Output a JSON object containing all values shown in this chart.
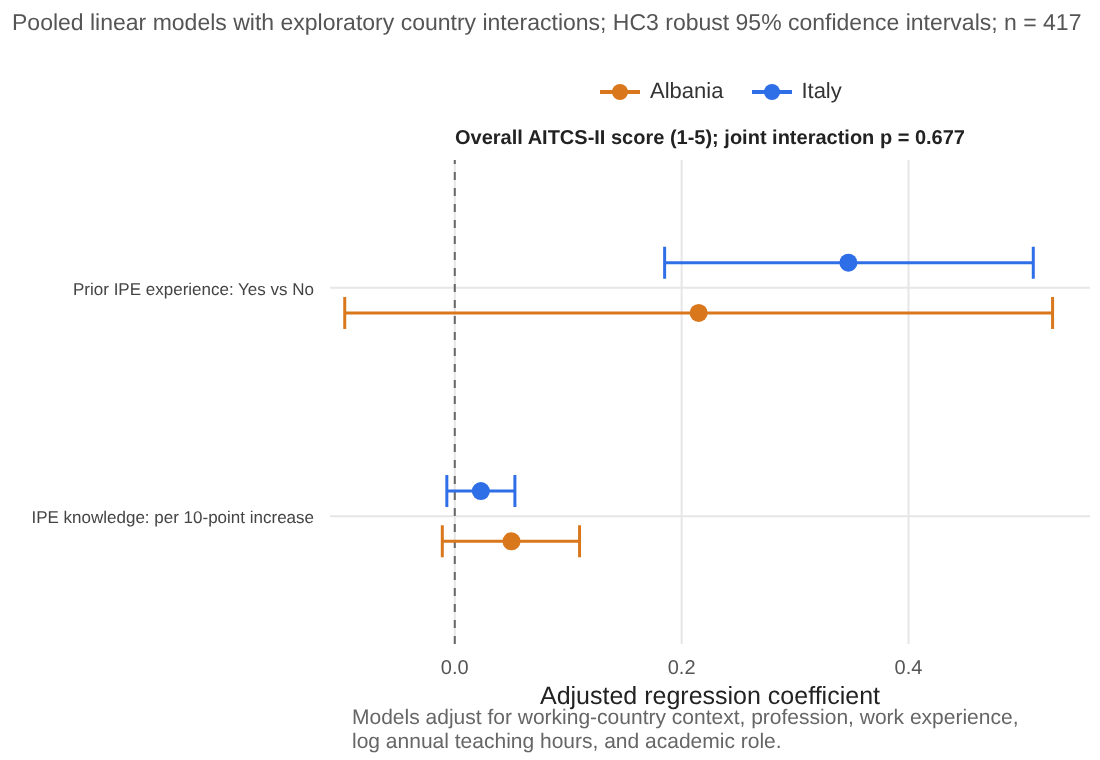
{
  "chart_data": {
    "type": "scatter",
    "orientation": "horizontal",
    "title": "Pooled linear models with exploratory country interactions; HC3 robust 95% confidence intervals; n = 417",
    "subtitle": "Overall AITCS-II score (1-5); joint interaction p = 0.677",
    "xlabel": "Adjusted regression coefficient",
    "annotations": [
      "Models adjust for working-country context, profession, work experience, log annual teaching hours, and academic role."
    ],
    "categories": [
      "Prior IPE experience: Yes vs No",
      "IPE knowledge: per 10-point increase"
    ],
    "series": [
      {
        "name": "Albania",
        "color": "#d9771c",
        "values": [
          0.215,
          0.05
        ],
        "errors": [
          [
            -0.097,
            0.527
          ],
          [
            -0.011,
            0.11
          ]
        ]
      },
      {
        "name": "Italy",
        "color": "#2e6ee6",
        "values": [
          0.347,
          0.023
        ],
        "errors": [
          [
            0.185,
            0.51
          ],
          [
            -0.007,
            0.053
          ]
        ]
      }
    ],
    "xlim": [
      -0.11,
      0.56
    ],
    "xticks": [
      {
        "value": 0,
        "label": "0.0"
      },
      0.2,
      0.4
    ],
    "ref_lines": [
      {
        "axis": "x",
        "value": 0,
        "color": "#666666",
        "line_style": "dashed"
      }
    ],
    "grid": true,
    "legend": "top",
    "marker": "circle"
  }
}
